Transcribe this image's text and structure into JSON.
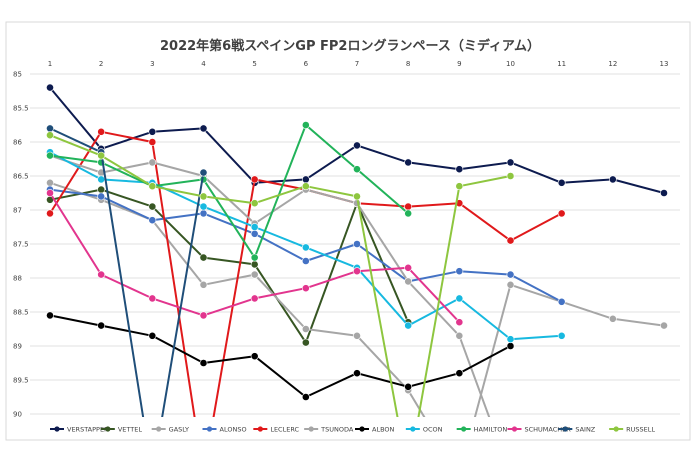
{
  "chart_data": {
    "type": "line",
    "title": "2022年第6戦スペインGP FP2ロングランペース（ミディアム）",
    "x": [
      1,
      2,
      3,
      4,
      5,
      6,
      7,
      8,
      9,
      10,
      11,
      12,
      13
    ],
    "x_tick_labels": [
      "1",
      "2",
      "3",
      "4",
      "5",
      "6",
      "7",
      "8",
      "9",
      "10",
      "11",
      "12",
      "13"
    ],
    "ylim": [
      85,
      90
    ],
    "y_inverted": true,
    "y_tick_labels": [
      "85",
      "85.5",
      "86",
      "86.5",
      "87",
      "87.5",
      "88",
      "88.5",
      "89",
      "89.5",
      "90"
    ],
    "y_ticks": [
      85,
      85.5,
      86,
      86.5,
      87,
      87.5,
      88,
      88.5,
      89,
      89.5,
      90
    ],
    "grid": "horizontal",
    "legend_position": "bottom",
    "series": [
      {
        "name": "VERSTAPPEN",
        "color": "#0d1b4f",
        "values": [
          85.2,
          86.1,
          85.85,
          85.8,
          86.6,
          86.55,
          86.05,
          86.3,
          86.4,
          86.3,
          86.6,
          86.55,
          86.75
        ]
      },
      {
        "name": "VETTEL",
        "color": "#375623",
        "values": [
          86.85,
          86.7,
          86.95,
          87.7,
          87.8,
          88.95,
          86.9,
          88.65,
          null,
          null,
          null,
          null,
          null
        ]
      },
      {
        "name": "GASLY",
        "color": "#a6a6a6",
        "values": [
          86.6,
          86.85,
          87.15,
          88.1,
          87.95,
          88.75,
          88.85,
          89.65,
          90.9,
          88.1,
          88.35,
          88.6,
          88.7
        ]
      },
      {
        "name": "ALONSO",
        "color": "#4472c4",
        "values": [
          86.7,
          86.8,
          87.15,
          87.05,
          87.35,
          87.75,
          87.5,
          88.05,
          87.9,
          87.95,
          88.35,
          null,
          null
        ]
      },
      {
        "name": "LECLERC",
        "color": "#e0191b",
        "values": [
          87.05,
          85.85,
          86.0,
          90.9,
          86.55,
          86.7,
          86.9,
          86.95,
          86.9,
          87.45,
          87.05,
          null,
          null
        ]
      },
      {
        "name": "TSUNODA",
        "color": "#a6a6a6",
        "values": [
          86.2,
          86.45,
          86.3,
          86.5,
          87.2,
          86.7,
          86.9,
          88.05,
          88.85,
          90.9,
          null,
          null,
          null
        ]
      },
      {
        "name": "ALBON",
        "color": "#000000",
        "values": [
          88.55,
          88.7,
          88.85,
          89.25,
          89.15,
          89.75,
          89.4,
          89.6,
          89.4,
          89.0,
          null,
          null,
          null
        ]
      },
      {
        "name": "OCON",
        "color": "#17b9e0",
        "values": [
          86.15,
          86.55,
          86.6,
          86.95,
          87.25,
          87.55,
          87.85,
          88.7,
          88.3,
          88.9,
          88.85,
          null,
          null
        ]
      },
      {
        "name": "HAMILTON",
        "color": "#22b35a",
        "values": [
          86.2,
          86.3,
          86.65,
          86.55,
          87.7,
          85.75,
          86.4,
          87.05,
          null,
          null,
          null,
          null,
          null
        ]
      },
      {
        "name": "SCHUMACHER",
        "color": "#e2358e",
        "values": [
          86.75,
          87.95,
          88.3,
          88.55,
          88.3,
          88.15,
          87.9,
          87.85,
          88.65,
          null,
          null,
          null,
          null
        ]
      },
      {
        "name": "SAINZ",
        "color": "#1f4e79",
        "values": [
          85.8,
          86.15,
          90.9,
          86.45,
          null,
          null,
          null,
          null,
          null,
          null,
          null,
          null,
          null
        ]
      },
      {
        "name": "RUSSELL",
        "color": "#8ec63f",
        "values": [
          85.9,
          86.2,
          86.65,
          86.8,
          86.9,
          86.65,
          86.8,
          90.9,
          86.65,
          86.5,
          null,
          null,
          null
        ]
      }
    ]
  }
}
